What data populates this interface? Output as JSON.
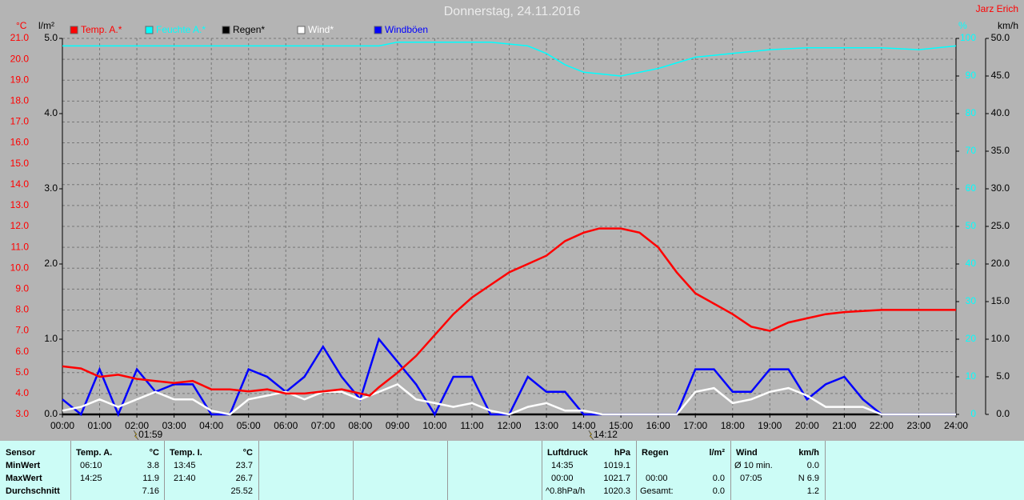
{
  "chart_data": {
    "type": "line",
    "title": "Donnerstag, 24.11.2016",
    "author": "Jarz Erich",
    "axis_labels": {
      "temp": "°C",
      "rain": "l/m²",
      "humidity": "%",
      "wind": "km/h"
    },
    "xlim": [
      0,
      24
    ],
    "xticks": [
      {
        "value": 0,
        "label": "00:00"
      },
      {
        "value": 1,
        "label": "01:00"
      },
      {
        "value": 2,
        "label": "02:00"
      },
      {
        "value": 3,
        "label": "03:00"
      },
      {
        "value": 4,
        "label": "04:00"
      },
      {
        "value": 5,
        "label": "05:00"
      },
      {
        "value": 6,
        "label": "06:00"
      },
      {
        "value": 7,
        "label": "07:00"
      },
      {
        "value": 8,
        "label": "08:00"
      },
      {
        "value": 9,
        "label": "09:00"
      },
      {
        "value": 10,
        "label": "10:00"
      },
      {
        "value": 11,
        "label": "11:00"
      },
      {
        "value": 12,
        "label": "12:00"
      },
      {
        "value": 13,
        "label": "13:00"
      },
      {
        "value": 14,
        "label": "14:00"
      },
      {
        "value": 15,
        "label": "15:00"
      },
      {
        "value": 16,
        "label": "16:00"
      },
      {
        "value": 17,
        "label": "17:00"
      },
      {
        "value": 18,
        "label": "18:00"
      },
      {
        "value": 19,
        "label": "19:00"
      },
      {
        "value": 20,
        "label": "20:00"
      },
      {
        "value": 21,
        "label": "21:00"
      },
      {
        "value": 22,
        "label": "22:00"
      },
      {
        "value": 23,
        "label": "23:00"
      },
      {
        "value": 24,
        "label": "24:00"
      }
    ],
    "ylim": [
      3,
      21
    ],
    "yticks": [
      {
        "value": 3,
        "label": "3.0"
      },
      {
        "value": 4,
        "label": "4.0"
      },
      {
        "value": 5,
        "label": "5.0"
      },
      {
        "value": 6,
        "label": "6.0"
      },
      {
        "value": 7,
        "label": "7.0"
      },
      {
        "value": 8,
        "label": "8.0"
      },
      {
        "value": 9,
        "label": "9.0"
      },
      {
        "value": 10,
        "label": "10.0"
      },
      {
        "value": 11,
        "label": "11.0"
      },
      {
        "value": 12,
        "label": "12.0"
      },
      {
        "value": 13,
        "label": "13.0"
      },
      {
        "value": 14,
        "label": "14.0"
      },
      {
        "value": 15,
        "label": "15.0"
      },
      {
        "value": 16,
        "label": "16.0"
      },
      {
        "value": 17,
        "label": "17.0"
      },
      {
        "value": 18,
        "label": "18.0"
      },
      {
        "value": 19,
        "label": "19.0"
      },
      {
        "value": 20,
        "label": "20.0"
      },
      {
        "value": 21,
        "label": "21.0"
      }
    ],
    "rain_lim": [
      0,
      5
    ],
    "rain_ticks": [
      {
        "value": 0,
        "label": "0.0"
      },
      {
        "value": 1,
        "label": "1.0"
      },
      {
        "value": 2,
        "label": "2.0"
      },
      {
        "value": 3,
        "label": "3.0"
      },
      {
        "value": 4,
        "label": "4.0"
      },
      {
        "value": 5,
        "label": "5.0"
      }
    ],
    "y2lim": [
      0,
      100
    ],
    "y2ticks": [
      0,
      10,
      20,
      30,
      40,
      50,
      60,
      70,
      80,
      90,
      100
    ],
    "wind_lim": [
      0,
      50
    ],
    "wind_ticks": [
      {
        "value": 0,
        "label": "0.0"
      },
      {
        "value": 5,
        "label": "5.0"
      },
      {
        "value": 10,
        "label": "10.0"
      },
      {
        "value": 15,
        "label": "15.0"
      },
      {
        "value": 20,
        "label": "20.0"
      },
      {
        "value": 25,
        "label": "25.0"
      },
      {
        "value": 30,
        "label": "30.0"
      },
      {
        "value": 35,
        "label": "35.0"
      },
      {
        "value": 40,
        "label": "40.0"
      },
      {
        "value": 45,
        "label": "45.0"
      },
      {
        "value": 50,
        "label": "50.0"
      }
    ],
    "grid": true,
    "series": [
      {
        "name": "Temp. A.*",
        "color": "#ff0000",
        "axis": "y",
        "x": [
          0,
          0.5,
          1,
          1.5,
          2,
          2.5,
          3,
          3.5,
          4,
          4.5,
          5,
          5.5,
          6,
          6.5,
          7,
          7.5,
          8,
          8.25,
          8.5,
          9,
          9.5,
          10,
          10.5,
          11,
          11.5,
          12,
          12.5,
          13,
          13.5,
          14,
          14.42,
          15,
          15.5,
          16,
          16.5,
          17,
          17.5,
          18,
          18.5,
          19,
          19.5,
          20,
          20.5,
          21,
          22,
          23,
          24
        ],
        "values": [
          5.3,
          5.2,
          4.8,
          4.9,
          4.7,
          4.6,
          4.5,
          4.6,
          4.2,
          4.2,
          4.1,
          4.2,
          4.0,
          4.0,
          4.1,
          4.2,
          4.0,
          3.9,
          4.3,
          5.0,
          5.8,
          6.8,
          7.8,
          8.6,
          9.2,
          9.8,
          10.2,
          10.6,
          11.3,
          11.7,
          11.9,
          11.9,
          11.7,
          11.0,
          9.8,
          8.8,
          8.3,
          7.8,
          7.2,
          7.0,
          7.4,
          7.6,
          7.8,
          7.9,
          8.0,
          8.0,
          8.0
        ]
      },
      {
        "name": "Feuchte A.*",
        "color": "#00ffff",
        "axis": "y2",
        "x": [
          0,
          4,
          8.5,
          9,
          11.5,
          12.5,
          13,
          13.5,
          14,
          15,
          16,
          17,
          18,
          19,
          20,
          22,
          23,
          24
        ],
        "values": [
          98,
          98,
          98,
          99,
          99,
          98,
          96,
          93,
          91,
          90,
          92,
          95,
          96,
          97,
          97.5,
          97.5,
          97,
          98
        ]
      },
      {
        "name": "Regen*",
        "color": "#000000",
        "axis": "rain",
        "x": [
          0,
          24
        ],
        "values": [
          0,
          0
        ]
      },
      {
        "name": "Wind*",
        "color": "#ffffff",
        "axis": "wind",
        "x": [
          0,
          0.5,
          1,
          1.5,
          2,
          2.5,
          3,
          3.5,
          4,
          4.5,
          5,
          5.5,
          6,
          6.5,
          7,
          7.5,
          8,
          8.5,
          9,
          9.5,
          10,
          10.5,
          11,
          11.5,
          12,
          12.5,
          13,
          13.5,
          14,
          14.5,
          15,
          15.5,
          16,
          16.5,
          17,
          17.5,
          18,
          18.5,
          19,
          19.5,
          20,
          20.5,
          21,
          21.5,
          22,
          22.5,
          23,
          23.5,
          24
        ],
        "values": [
          0.5,
          1,
          2,
          1,
          2,
          3,
          2,
          2,
          0.5,
          0,
          2,
          2.5,
          3,
          2,
          3,
          3,
          2,
          3,
          4,
          2,
          1.5,
          1,
          1.5,
          0.5,
          0,
          1,
          1.5,
          0.5,
          0.5,
          0,
          0,
          0,
          0,
          0,
          3,
          3.5,
          1.5,
          2,
          3,
          3.5,
          2.5,
          1,
          1,
          1,
          0,
          0,
          0,
          0,
          0
        ]
      },
      {
        "name": "Windböen",
        "color": "#0000ff",
        "axis": "wind",
        "x": [
          0,
          0.5,
          1,
          1.5,
          2,
          2.5,
          3,
          3.5,
          4,
          4.5,
          5,
          5.5,
          6,
          6.5,
          7,
          7.5,
          8,
          8.5,
          9,
          9.5,
          10,
          10.5,
          11,
          11.5,
          12,
          12.5,
          13,
          13.5,
          14,
          14.5,
          15,
          15.5,
          16,
          16.5,
          17,
          17.5,
          18,
          18.5,
          19,
          19.5,
          20,
          20.5,
          21,
          21.5,
          22,
          22.5,
          23,
          23.5,
          24
        ],
        "values": [
          2,
          0,
          6,
          0,
          6,
          3,
          4,
          4,
          0,
          0,
          6,
          5,
          3,
          5,
          9,
          5,
          2,
          10,
          7,
          4,
          0,
          5,
          5,
          0,
          0,
          5,
          3,
          3,
          0,
          0,
          0,
          0,
          0,
          0,
          6,
          6,
          3,
          3,
          6,
          6,
          2,
          4,
          5,
          2,
          0,
          0,
          0,
          0,
          0
        ]
      }
    ],
    "annotations": [
      {
        "x": 1.98,
        "label": "01:59"
      },
      {
        "x": 14.2,
        "label": "14:12"
      }
    ]
  },
  "stats": {
    "row_labels": [
      "Sensor",
      "MinWert",
      "MaxWert",
      "Durchschnitt"
    ],
    "columns": [
      {
        "title": "Temp. A.",
        "unit": "°C",
        "rows": [
          {
            "time": "06:10",
            "value": "3.8"
          },
          {
            "time": "14:25",
            "value": "11.9"
          },
          {
            "value": "7.16"
          }
        ]
      },
      {
        "title": "Temp. I.",
        "unit": "°C",
        "rows": [
          {
            "time": "13:45",
            "value": "23.7"
          },
          {
            "time": "21:40",
            "value": "26.7"
          },
          {
            "value": "25.52"
          }
        ]
      },
      {
        "title": "Luftdruck",
        "unit": "hPa",
        "rows": [
          {
            "time": "14:35",
            "value": "1019.1"
          },
          {
            "time": "00:00",
            "value": "1021.7"
          },
          {
            "time": "^0.8hPa/h",
            "value": "1020.3"
          }
        ]
      },
      {
        "title": "Regen",
        "unit": "l/m²",
        "rows": [
          {},
          {
            "time": "00:00",
            "value": "0.0"
          },
          {
            "time": "Gesamt:",
            "value": "0.0"
          }
        ]
      },
      {
        "title": "Wind",
        "unit": "km/h",
        "rows": [
          {
            "time": "Ø 10 min.",
            "value": "0.0"
          },
          {
            "time": "07:05",
            "value": "N 6.9"
          },
          {
            "value": "1.2"
          }
        ]
      }
    ]
  }
}
